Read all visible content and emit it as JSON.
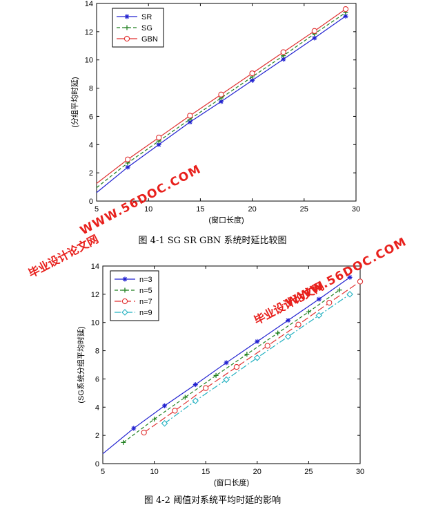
{
  "figures": [
    {
      "caption": "图 4-1 SG SR GBN  系统时延比较图",
      "chart_data": {
        "type": "line",
        "xlabel": "(窗口长度)",
        "ylabel": "(分组平均时延)",
        "xlim": [
          5,
          30
        ],
        "ylim": [
          0,
          14
        ],
        "xticks": [
          5,
          10,
          15,
          20,
          25,
          30
        ],
        "yticks": [
          0,
          2,
          4,
          6,
          8,
          10,
          12,
          14
        ],
        "grid": false,
        "legend_position": "top-left",
        "series": [
          {
            "name": "SR",
            "color": "#2020d0",
            "dash": "solid",
            "marker": "star",
            "x": [
              5,
              8,
              11,
              14,
              17,
              20,
              23,
              26,
              29
            ],
            "y": [
              0.6,
              2.4,
              4.0,
              5.6,
              7.05,
              8.55,
              10.05,
              11.55,
              13.1
            ],
            "marker_x": [
              8,
              11,
              14,
              17,
              20,
              23,
              26,
              29
            ]
          },
          {
            "name": "SG",
            "color": "#208020",
            "dash": "dashed",
            "marker": "plus",
            "x": [
              5,
              8,
              11,
              14,
              17,
              20,
              23,
              26,
              29
            ],
            "y": [
              0.95,
              2.7,
              4.25,
              5.8,
              7.3,
              8.8,
              10.3,
              11.85,
              13.35
            ],
            "marker_x": [
              8,
              11,
              14,
              17,
              20,
              23,
              26,
              29
            ]
          },
          {
            "name": "GBN",
            "color": "#e03030",
            "dash": "solid",
            "marker": "circle",
            "x": [
              5,
              8,
              11,
              14,
              17,
              20,
              23,
              26,
              29
            ],
            "y": [
              1.25,
              2.95,
              4.5,
              6.05,
              7.55,
              9.05,
              10.55,
              12.05,
              13.6
            ],
            "marker_x": [
              8,
              11,
              14,
              17,
              20,
              23,
              26,
              29
            ]
          }
        ]
      }
    },
    {
      "caption": "图 4-2  阈值对系统平均时延的影响",
      "chart_data": {
        "type": "line",
        "xlabel": "(窗口长度)",
        "ylabel": "(SG系统分组平均时延)",
        "xlim": [
          5,
          30
        ],
        "ylim": [
          0,
          14
        ],
        "xticks": [
          5,
          10,
          15,
          20,
          25,
          30
        ],
        "yticks": [
          0,
          2,
          4,
          6,
          8,
          10,
          12,
          14
        ],
        "grid": false,
        "legend_position": "top-left",
        "series": [
          {
            "name": "n=3",
            "color": "#2020d0",
            "dash": "solid",
            "marker": "star",
            "x": [
              5,
              8,
              11,
              14,
              17,
              20,
              23,
              26,
              29
            ],
            "y": [
              0.7,
              2.5,
              4.1,
              5.6,
              7.15,
              8.65,
              10.15,
              11.65,
              13.2
            ],
            "marker_x": [
              8,
              11,
              14,
              17,
              20,
              23,
              26,
              29
            ]
          },
          {
            "name": "n=5",
            "color": "#208020",
            "dash": "dashed",
            "marker": "plus",
            "x": [
              7,
              10,
              13,
              16,
              19,
              22,
              25,
              28
            ],
            "y": [
              1.5,
              3.15,
              4.7,
              6.25,
              7.75,
              9.25,
              10.75,
              12.3
            ],
            "marker_x": [
              7,
              10,
              13,
              16,
              19,
              22,
              25,
              28
            ]
          },
          {
            "name": "n=7",
            "color": "#e03030",
            "dash": "longdash",
            "marker": "circle",
            "x": [
              9,
              12,
              15,
              18,
              21,
              24,
              27,
              30
            ],
            "y": [
              2.2,
              3.75,
              5.35,
              6.85,
              8.35,
              9.85,
              11.4,
              12.9
            ],
            "marker_x": [
              9,
              12,
              15,
              18,
              21,
              24,
              27,
              30
            ]
          },
          {
            "name": "n=9",
            "color": "#20b0c0",
            "dash": "dashdot",
            "marker": "diamond",
            "x": [
              11,
              14,
              17,
              20,
              23,
              26,
              29
            ],
            "y": [
              2.85,
              4.45,
              5.95,
              7.5,
              9.0,
              10.5,
              12.0
            ],
            "marker_x": [
              11,
              14,
              17,
              20,
              23,
              26,
              29
            ]
          }
        ]
      }
    }
  ],
  "watermarks": {
    "site": "WWW.56DOC.COM",
    "label": "毕业设计论文网"
  }
}
